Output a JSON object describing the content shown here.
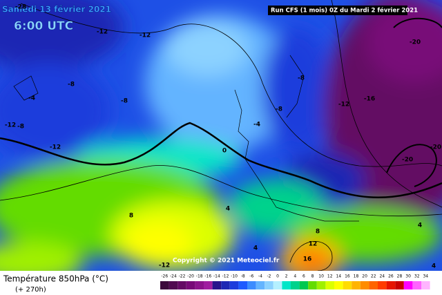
{
  "header": {
    "date": "Samedi 13 février 2021",
    "time": "6:00 UTC",
    "run": "Run CFS (1 mois) 0Z du Mardi 2 février 2021"
  },
  "map": {
    "copyright": "Copyright © 2021 Meteociel.fr",
    "contour_labels": [
      -28,
      -12,
      -12,
      -8,
      -4,
      -8,
      -12,
      -8,
      -12,
      -8,
      -8,
      -12,
      -16,
      -20,
      -20,
      -20,
      -4,
      0,
      8,
      4,
      4,
      8,
      12,
      16,
      4,
      4,
      -12
    ]
  },
  "legend": {
    "title": "Température 850hPa (°C)",
    "lead_time": "(+ 270h)",
    "scale": [
      -26,
      -24,
      -22,
      -20,
      -18,
      -16,
      -14,
      -12,
      -10,
      -8,
      -6,
      -4,
      -2,
      0,
      2,
      4,
      6,
      8,
      10,
      12,
      14,
      16,
      18,
      20,
      22,
      24,
      26,
      28,
      30,
      32,
      34
    ],
    "colors": [
      "#3c0a3c",
      "#500a50",
      "#640a64",
      "#780a78",
      "#8c148c",
      "#a01ea0",
      "#28148c",
      "#1e28b4",
      "#1e3cdc",
      "#1e5aff",
      "#3c8cff",
      "#64b4ff",
      "#8cd2ff",
      "#b4f0ff",
      "#00e6c8",
      "#00d28c",
      "#00c850",
      "#64dc00",
      "#a0f000",
      "#dcff00",
      "#ffff00",
      "#ffdc00",
      "#ffb400",
      "#ff8c00",
      "#ff6400",
      "#ff3c00",
      "#e61400",
      "#c80000",
      "#ff00ff",
      "#ff64ff",
      "#ffb4ff"
    ]
  }
}
